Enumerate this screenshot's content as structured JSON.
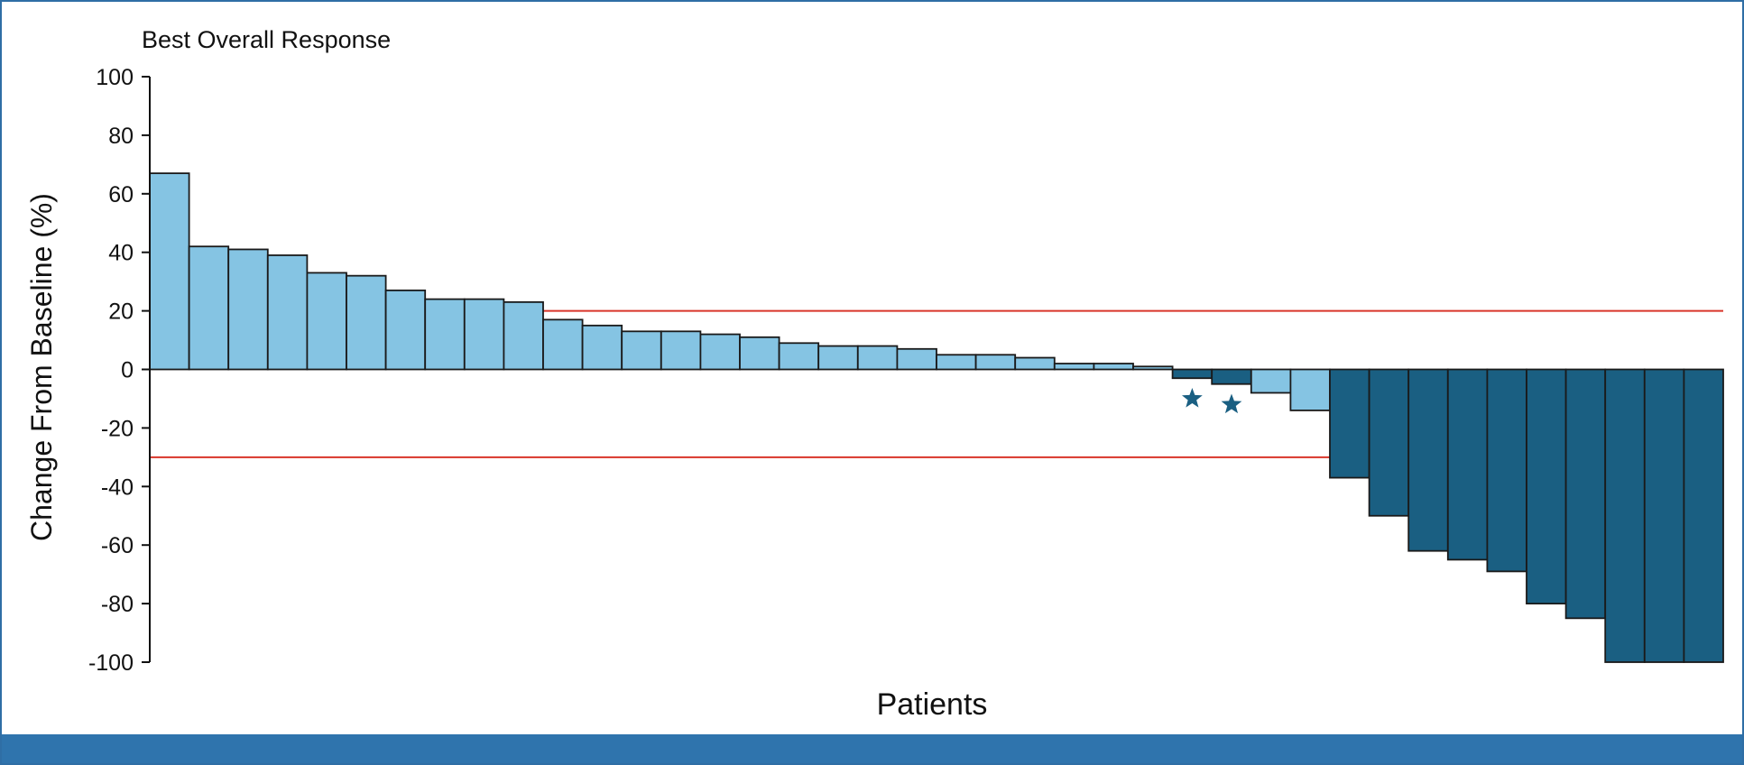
{
  "chart_data": {
    "type": "bar",
    "title": "Best Overall Response",
    "xlabel": "Patients",
    "ylabel": "Change From Baseline (%)",
    "ylim": [
      -100,
      100
    ],
    "yticks": [
      100,
      80,
      60,
      40,
      20,
      0,
      -20,
      -40,
      -60,
      -80,
      -100
    ],
    "ytick_labels": [
      "100",
      "80",
      "60",
      "40",
      "20",
      "0",
      "-20",
      "-40",
      "-60",
      "-80",
      "-100"
    ],
    "grid": false,
    "reference_lines": [
      {
        "y": 20,
        "color": "#d9352a"
      },
      {
        "y": -30,
        "color": "#d9352a"
      }
    ],
    "colors": {
      "light": "#85c4e3",
      "dark": "#1a5f82",
      "marker": "#1a5f82",
      "edge": "#1a1a1a"
    },
    "values": [
      67,
      42,
      41,
      39,
      33,
      32,
      27,
      24,
      24,
      23,
      17,
      15,
      13,
      13,
      12,
      11,
      9,
      8,
      8,
      7,
      5,
      5,
      4,
      2,
      2,
      1,
      -3,
      -5,
      -8,
      -14,
      -37,
      -50,
      -62,
      -65,
      -69,
      -80,
      -85,
      -100,
      -100,
      -100
    ],
    "bar_colors": [
      "light",
      "light",
      "light",
      "light",
      "light",
      "light",
      "light",
      "light",
      "light",
      "light",
      "light",
      "light",
      "light",
      "light",
      "light",
      "light",
      "light",
      "light",
      "light",
      "light",
      "light",
      "light",
      "light",
      "light",
      "light",
      "light",
      "dark",
      "dark",
      "light",
      "light",
      "dark",
      "dark",
      "dark",
      "dark",
      "dark",
      "dark",
      "dark",
      "dark",
      "dark",
      "dark"
    ],
    "star_markers": [
      {
        "bar_index": 26,
        "y": -10
      },
      {
        "bar_index": 27,
        "y": -12
      }
    ]
  }
}
